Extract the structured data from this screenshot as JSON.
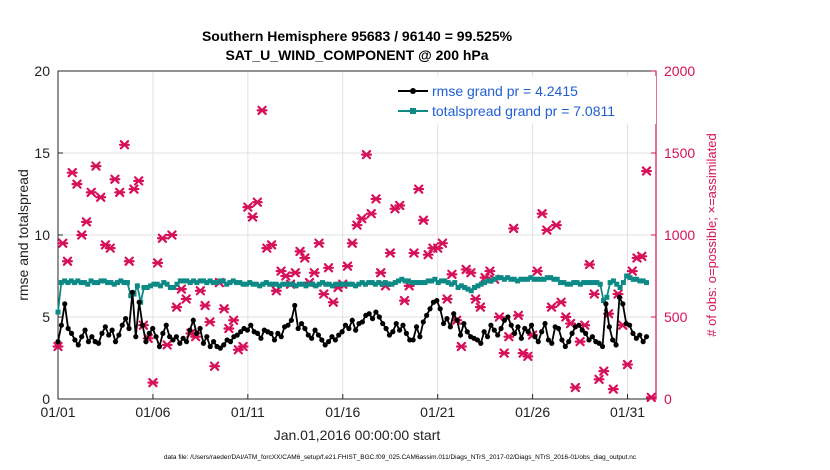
{
  "chart_data": {
    "type": "line",
    "title": "Southern Hemisphere 95683 / 96140 = 99.525%",
    "subtitle": "SAT_U_WIND_COMPONENT @ 200 hPa",
    "xlabel": "Jan.01,2016 00:00:00 start",
    "ylabel": "rmse and totalspread",
    "y2label": "# of obs: o=possible; ×=assimilated",
    "footnote": "data file: /Users/raeder/DAI/ATM_forcXX/CAM6_setup/f.e21.FHIST_BGC.f09_025.CAM6assim.011/Diags_NTrS_2017-02/Diags_NTrS_2016-01/obs_diag_output.nc",
    "xlim": [
      0,
      31.5
    ],
    "ylim": [
      0,
      20
    ],
    "y2lim": [
      0,
      2000
    ],
    "xticks": [
      0,
      5,
      10,
      15,
      20,
      25,
      30
    ],
    "xtick_labels": [
      "01/01",
      "01/06",
      "01/11",
      "01/16",
      "01/21",
      "01/26",
      "01/31"
    ],
    "yticks": [
      0,
      5,
      10,
      15,
      20
    ],
    "y2ticks": [
      0,
      500,
      1000,
      1500,
      2000
    ],
    "series": [
      {
        "name": "rmse grand pr = 4.2415",
        "color": "#000000",
        "marker": "circle",
        "values": [
          3.5,
          4.5,
          5.8,
          4.3,
          4.0,
          3.6,
          3.3,
          3.8,
          4.2,
          3.5,
          3.8,
          3.5,
          3.4,
          4.0,
          4.4,
          3.9,
          4.2,
          3.5,
          3.9,
          4.5,
          4.9,
          4.3,
          6.5,
          3.8,
          5.9,
          4.5,
          3.5,
          4.0,
          4.3,
          3.8,
          3.2,
          4.0,
          4.5,
          3.8,
          3.6,
          3.8,
          3.4,
          3.7,
          3.5,
          4.2,
          4.8,
          4.0,
          4.3,
          3.4,
          3.8,
          3.2,
          3.5,
          3.2,
          3.1,
          3.3,
          3.6,
          3.5,
          3.8,
          3.9,
          4.1,
          4.3,
          4.2,
          4.5,
          4.1,
          4.0,
          3.7,
          4.2,
          4.1,
          4.0,
          3.6,
          4.0,
          3.8,
          4.4,
          4.5,
          4.8,
          5.7,
          4.3,
          4.6,
          4.3,
          3.9,
          3.7,
          4.2,
          3.9,
          3.6,
          3.3,
          3.5,
          3.8,
          3.6,
          3.9,
          4.1,
          4.5,
          4.3,
          4.8,
          4.2,
          4.6,
          4.7,
          5.1,
          5.2,
          4.9,
          5.3,
          5.0,
          4.6,
          4.3,
          3.9,
          4.1,
          4.6,
          4.2,
          4.5,
          4.0,
          3.6,
          3.6,
          4.4,
          3.8,
          4.7,
          5.1,
          5.5,
          5.9,
          6.0,
          5.5,
          4.6,
          4.9,
          4.4,
          5.2,
          4.8,
          3.9,
          4.6,
          4.1,
          3.8,
          3.7,
          3.6,
          3.4,
          4.1,
          3.8,
          4.5,
          4.2,
          3.9,
          4.3,
          4.8,
          5.0,
          4.5,
          4.0,
          4.4,
          3.7,
          4.3,
          4.1,
          4.5,
          3.8,
          3.5,
          4.1,
          4.6,
          3.6,
          3.4,
          4.4,
          4.3,
          3.6,
          3.2,
          3.5,
          4.0,
          4.4,
          4.5,
          4.2,
          4.0,
          3.6,
          3.8,
          3.5,
          3.4,
          3.2,
          5.8,
          4.4,
          3.6,
          3.3,
          6.2,
          5.8,
          4.6,
          4.5,
          4.0,
          3.7,
          3.9,
          3.5,
          3.8
        ]
      },
      {
        "name": "totalspread grand pr = 7.0811",
        "color": "#0e8a86",
        "marker": "square",
        "values": [
          5.3,
          7.1,
          7.2,
          7.1,
          7.2,
          7.1,
          7.2,
          7.1,
          7.1,
          7.0,
          7.2,
          7.1,
          7.1,
          7.2,
          7.2,
          7.1,
          7.1,
          7.0,
          7.1,
          7.2,
          7.1,
          7.1,
          6.3,
          6.4,
          6.9,
          5.9,
          6.8,
          6.8,
          6.9,
          7.0,
          7.0,
          6.9,
          7.1,
          7.0,
          6.8,
          6.8,
          7.0,
          7.2,
          7.2,
          7.2,
          7.1,
          7.2,
          7.1,
          7.2,
          7.2,
          7.1,
          7.2,
          7.1,
          7.1,
          7.2,
          7.2,
          7.0,
          7.1,
          7.2,
          7.1,
          7.1,
          7.0,
          7.0,
          7.1,
          7.0,
          7.0,
          6.9,
          7.0,
          7.1,
          7.0,
          7.0,
          7.0,
          6.9,
          7.0,
          7.0,
          7.0,
          7.0,
          6.9,
          7.0,
          7.0,
          6.9,
          7.0,
          7.0,
          6.9,
          7.0,
          7.1,
          7.0,
          7.0,
          6.9,
          7.0,
          7.0,
          7.0,
          7.0,
          7.0,
          7.0,
          6.9,
          7.0,
          7.1,
          7.0,
          7.1,
          7.1,
          7.0,
          7.1,
          7.0,
          7.1,
          7.0,
          7.0,
          7.1,
          7.2,
          7.3,
          7.2,
          7.2,
          7.1,
          7.1,
          7.1,
          7.1,
          7.1,
          7.2,
          7.2,
          7.3,
          7.1,
          7.2,
          7.2,
          7.1,
          7.0,
          7.1,
          6.8,
          6.9,
          6.8,
          6.7,
          6.6,
          6.8,
          6.9,
          7.0,
          7.1,
          7.2,
          7.2,
          7.3,
          7.4,
          7.4,
          7.3,
          7.4,
          7.3,
          7.3,
          7.2,
          7.3,
          7.3,
          7.3,
          7.4,
          7.3,
          7.3,
          7.3,
          7.3,
          7.4,
          7.4,
          7.3,
          7.3,
          7.1,
          7.1,
          7.0,
          7.0,
          7.1,
          7.1,
          7.0,
          7.1,
          7.1,
          7.1,
          7.1,
          7.1,
          7.0,
          6.0,
          6.2,
          7.1,
          7.2,
          7.0,
          6.8,
          7.1,
          7.5,
          7.4,
          7.3,
          7.3,
          7.2,
          7.2,
          7.1
        ]
      },
      {
        "name": "# of obs assimilated",
        "color": "#d6115a",
        "marker": "x",
        "axis": "right",
        "x": [
          0.0,
          0.25,
          0.5,
          0.75,
          1.0,
          1.25,
          1.5,
          1.75,
          2.0,
          2.25,
          2.5,
          2.75,
          3.0,
          3.25,
          3.5,
          3.75,
          4.0,
          4.25,
          4.5,
          4.75,
          5.0,
          5.25,
          5.5,
          5.75,
          6.0,
          6.25,
          6.5,
          6.75,
          7.0,
          7.25,
          7.5,
          7.75,
          8.0,
          8.25,
          8.5,
          8.75,
          9.0,
          9.25,
          9.5,
          9.75,
          10.0,
          10.25,
          10.5,
          10.75,
          11.0,
          11.25,
          11.5,
          11.75,
          12.0,
          12.25,
          12.5,
          12.75,
          13.0,
          13.25,
          13.5,
          13.75,
          14.0,
          14.25,
          14.5,
          14.75,
          15.0,
          15.25,
          15.5,
          15.75,
          16.0,
          16.25,
          16.5,
          16.75,
          17.0,
          17.25,
          17.5,
          17.75,
          18.0,
          18.25,
          18.5,
          18.75,
          19.0,
          19.25,
          19.5,
          19.75,
          20.0,
          20.25,
          20.5,
          20.75,
          21.0,
          21.25,
          21.5,
          21.75,
          22.0,
          22.25,
          22.5,
          22.75,
          23.0,
          23.25,
          23.5,
          23.75,
          24.0,
          24.25,
          24.5,
          24.75,
          25.0,
          25.25,
          25.5,
          25.75,
          26.0,
          26.25,
          26.5,
          26.75,
          27.0,
          27.25,
          27.5,
          27.75,
          28.0,
          28.25,
          28.5,
          28.75,
          29.0,
          29.25,
          29.5,
          29.75,
          30.0,
          30.25,
          30.5,
          30.75,
          31.0,
          31.25
        ],
        "values": [
          320,
          950,
          840,
          1380,
          1310,
          1000,
          1080,
          1260,
          1420,
          1230,
          940,
          920,
          1340,
          1260,
          1550,
          840,
          1280,
          1330,
          450,
          370,
          100,
          830,
          980,
          330,
          1000,
          560,
          670,
          610,
          400,
          380,
          660,
          570,
          470,
          200,
          710,
          550,
          430,
          480,
          300,
          320,
          1170,
          1110,
          1200,
          1760,
          920,
          940,
          660,
          780,
          750,
          700,
          770,
          900,
          860,
          710,
          770,
          950,
          640,
          800,
          590,
          680,
          700,
          810,
          950,
          1060,
          1100,
          1490,
          1130,
          1220,
          770,
          690,
          890,
          1160,
          1180,
          600,
          690,
          890,
          1280,
          1090,
          880,
          920,
          920,
          950,
          610,
          760,
          480,
          320,
          790,
          770,
          610,
          560,
          740,
          780,
          730,
          500,
          280,
          380,
          1040,
          510,
          280,
          260,
          390,
          780,
          1130,
          1030,
          560,
          1060,
          590,
          500,
          460,
          70,
          350,
          450,
          820,
          640,
          120,
          170,
          520,
          60,
          640,
          450,
          210,
          780,
          860,
          870,
          1390,
          10
        ]
      }
    ]
  }
}
